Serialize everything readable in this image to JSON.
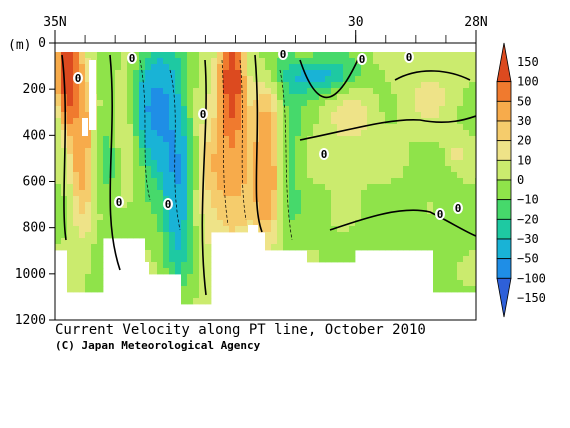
{
  "chart_data": {
    "type": "heatmap",
    "title": "Current Velocity along PT line, October 2010",
    "credit": "(C) Japan Meteorological Agency",
    "ylabel": "(m)",
    "xlim_deg": [
      35,
      28
    ],
    "x_ticks": [
      {
        "value": 35,
        "label": "35N"
      },
      {
        "value": 30,
        "label": "30"
      },
      {
        "value": 28,
        "label": "28N"
      }
    ],
    "ylim_m": [
      0,
      1200
    ],
    "y_ticks": [
      0,
      200,
      400,
      600,
      800,
      1000,
      1200
    ],
    "contour_labels": [
      "0",
      "0",
      "0",
      "0",
      "0",
      "0",
      "0",
      "0",
      "0",
      "0",
      "0"
    ],
    "colorbar": {
      "boundaries": [
        150,
        100,
        50,
        30,
        20,
        10,
        0,
        -10,
        -20,
        -30,
        -50,
        -100,
        -150
      ],
      "labels": [
        "150",
        "100",
        "50",
        "30",
        "20",
        "10",
        "0",
        "−10",
        "−20",
        "−30",
        "−50",
        "−100",
        "−150"
      ],
      "colors": [
        "#dc4a1f",
        "#f07a2e",
        "#f7ab4b",
        "#f5cc6c",
        "#eee388",
        "#cbeb6e",
        "#8fe34a",
        "#46d96b",
        "#1ec9a2",
        "#19b3d6",
        "#1f8ee6",
        "#2e60d9"
      ]
    }
  }
}
